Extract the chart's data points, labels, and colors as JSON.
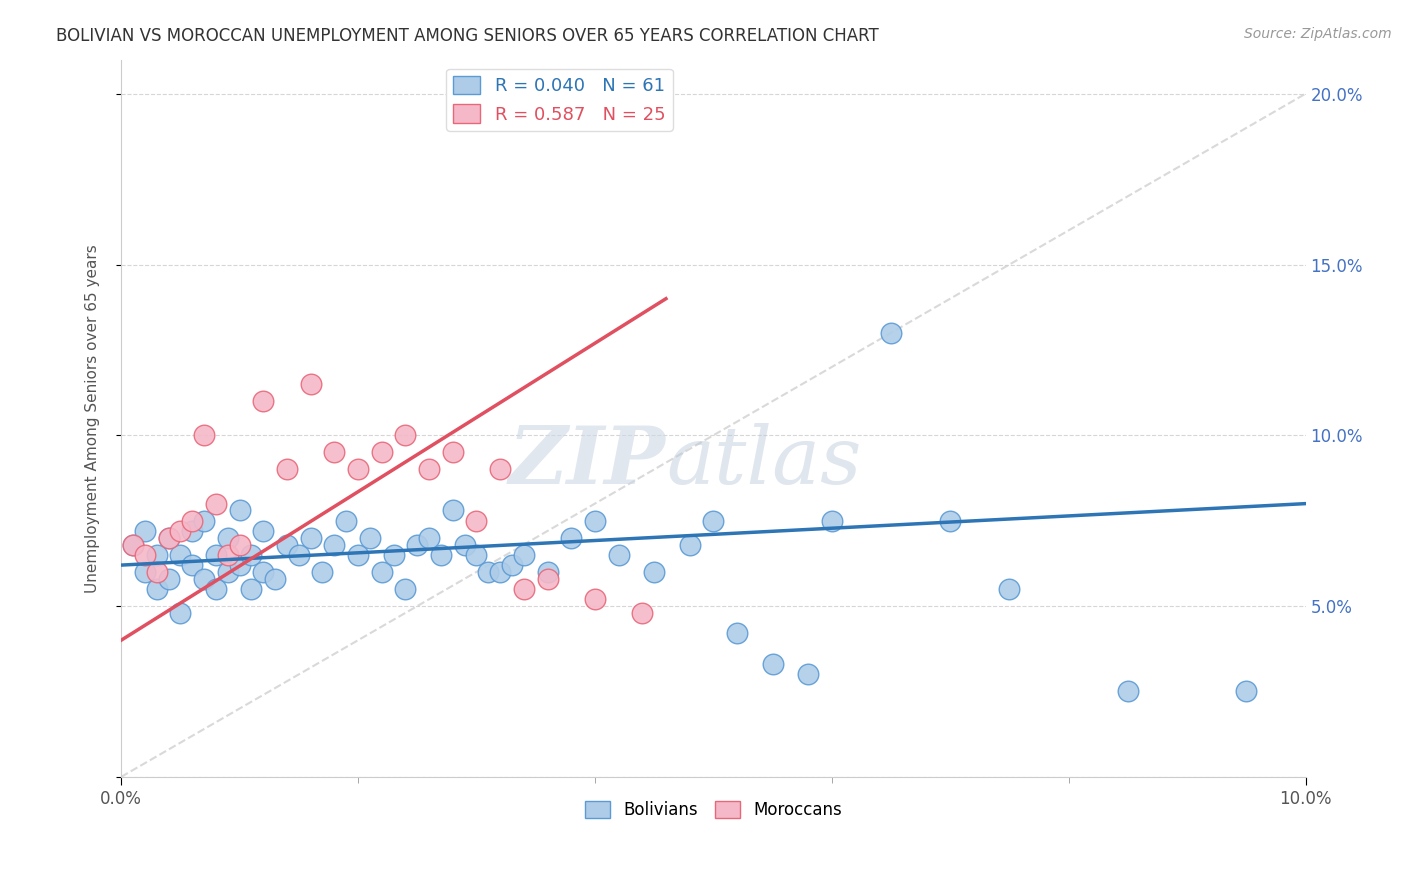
{
  "title": "BOLIVIAN VS MOROCCAN UNEMPLOYMENT AMONG SENIORS OVER 65 YEARS CORRELATION CHART",
  "source": "Source: ZipAtlas.com",
  "ylabel": "Unemployment Among Seniors over 65 years",
  "xlim": [
    0.0,
    0.1
  ],
  "ylim": [
    0.0,
    0.21
  ],
  "bolivia_R": 0.04,
  "bolivia_N": 61,
  "morocco_R": 0.587,
  "morocco_N": 25,
  "bolivia_color": "#aecce8",
  "morocco_color": "#f5b8c8",
  "bolivia_edge_color": "#5b9bd5",
  "morocco_edge_color": "#e8687a",
  "bolivia_line_color": "#2e75b6",
  "morocco_line_color": "#e05060",
  "diagonal_color": "#d0d0d0",
  "right_axis_color": "#4472c4",
  "bolivia_x": [
    0.001,
    0.002,
    0.002,
    0.003,
    0.003,
    0.004,
    0.004,
    0.005,
    0.005,
    0.006,
    0.006,
    0.007,
    0.007,
    0.008,
    0.008,
    0.009,
    0.009,
    0.01,
    0.01,
    0.011,
    0.011,
    0.012,
    0.012,
    0.013,
    0.014,
    0.015,
    0.016,
    0.017,
    0.018,
    0.019,
    0.02,
    0.021,
    0.022,
    0.023,
    0.024,
    0.025,
    0.026,
    0.027,
    0.028,
    0.029,
    0.03,
    0.031,
    0.032,
    0.033,
    0.034,
    0.036,
    0.038,
    0.04,
    0.042,
    0.045,
    0.048,
    0.05,
    0.052,
    0.055,
    0.058,
    0.06,
    0.065,
    0.07,
    0.075,
    0.085,
    0.095
  ],
  "bolivia_y": [
    0.068,
    0.072,
    0.06,
    0.065,
    0.055,
    0.07,
    0.058,
    0.065,
    0.048,
    0.072,
    0.062,
    0.058,
    0.075,
    0.055,
    0.065,
    0.06,
    0.07,
    0.062,
    0.078,
    0.055,
    0.065,
    0.072,
    0.06,
    0.058,
    0.068,
    0.065,
    0.07,
    0.06,
    0.068,
    0.075,
    0.065,
    0.07,
    0.06,
    0.065,
    0.055,
    0.068,
    0.07,
    0.065,
    0.078,
    0.068,
    0.065,
    0.06,
    0.06,
    0.062,
    0.065,
    0.06,
    0.07,
    0.075,
    0.065,
    0.06,
    0.068,
    0.075,
    0.042,
    0.033,
    0.03,
    0.075,
    0.13,
    0.075,
    0.055,
    0.025,
    0.025
  ],
  "morocco_x": [
    0.001,
    0.002,
    0.003,
    0.004,
    0.005,
    0.006,
    0.007,
    0.008,
    0.009,
    0.01,
    0.012,
    0.014,
    0.016,
    0.018,
    0.02,
    0.022,
    0.024,
    0.026,
    0.028,
    0.03,
    0.032,
    0.034,
    0.036,
    0.04,
    0.044
  ],
  "morocco_y": [
    0.068,
    0.065,
    0.06,
    0.07,
    0.072,
    0.075,
    0.1,
    0.08,
    0.065,
    0.068,
    0.11,
    0.09,
    0.115,
    0.095,
    0.09,
    0.095,
    0.1,
    0.09,
    0.095,
    0.075,
    0.09,
    0.055,
    0.058,
    0.052,
    0.048
  ],
  "bolivia_line_x0": 0.0,
  "bolivia_line_x1": 0.1,
  "bolivia_line_y0": 0.062,
  "bolivia_line_y1": 0.08,
  "morocco_line_x0": 0.0,
  "morocco_line_x1": 0.046,
  "morocco_line_y0": 0.04,
  "morocco_line_y1": 0.14
}
